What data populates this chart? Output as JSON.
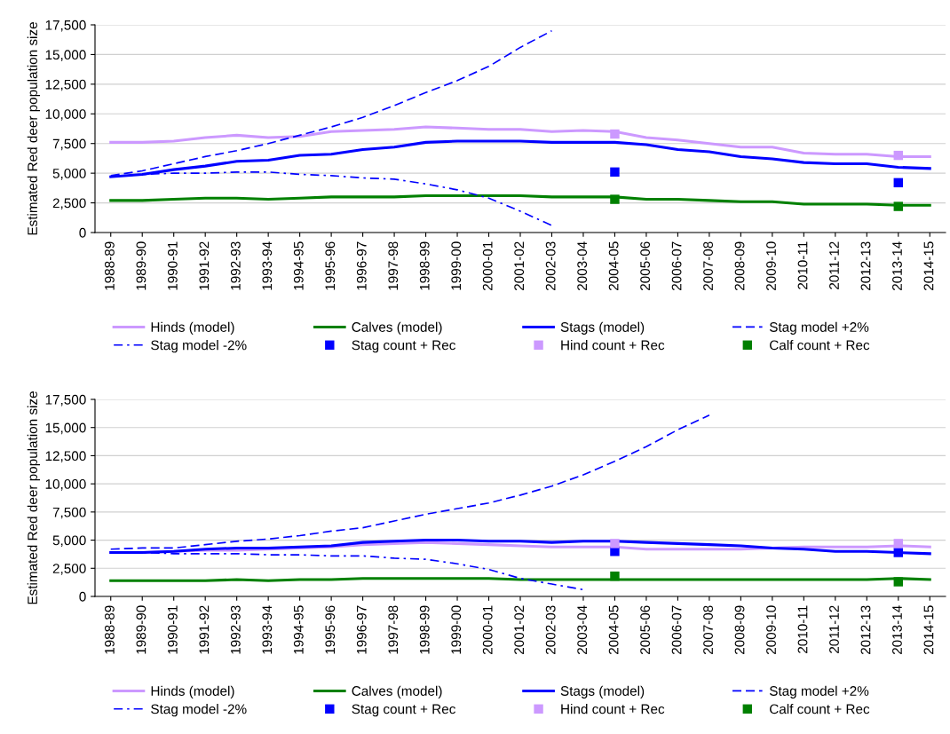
{
  "chart_data": [
    {
      "type": "line",
      "ylabel": "Estimated Red deer population size",
      "categories": [
        "1988-89",
        "1989-90",
        "1990-91",
        "1991-92",
        "1992-93",
        "1993-94",
        "1994-95",
        "1995-96",
        "1996-97",
        "1997-98",
        "1998-99",
        "1999-00",
        "2000-01",
        "2001-02",
        "2002-03",
        "2003-04",
        "2004-05",
        "2005-06",
        "2006-07",
        "2007-08",
        "2008-09",
        "2009-10",
        "2010-11",
        "2011-12",
        "2012-13",
        "2013-14",
        "2014-15"
      ],
      "ylim": [
        0,
        17500
      ],
      "yticks": [
        0,
        {
          "value": 2500,
          "label": "2,500"
        },
        {
          "value": 5000,
          "label": "5,000"
        },
        {
          "value": 7500,
          "label": "7,500"
        },
        {
          "value": 10000,
          "label": "10,000"
        },
        {
          "value": 12500,
          "label": "12,500"
        },
        {
          "value": 15000,
          "label": "15,000"
        },
        {
          "value": 17500,
          "label": "17,500"
        }
      ],
      "grid": "y",
      "legend": "bottom",
      "series": [
        {
          "name": "Hinds (model)",
          "color": "#cc99ff",
          "line_style": "solid",
          "values": [
            7600,
            7600,
            7700,
            8000,
            8200,
            8000,
            8100,
            8500,
            8600,
            8700,
            8900,
            8800,
            8700,
            8700,
            8500,
            8600,
            8500,
            8000,
            7800,
            7500,
            7200,
            7200,
            6700,
            6600,
            6600,
            6400,
            6400
          ]
        },
        {
          "name": "Calves (model)",
          "color": "#008000",
          "line_style": "solid",
          "values": [
            2700,
            2700,
            2800,
            2900,
            2900,
            2800,
            2900,
            3000,
            3000,
            3000,
            3100,
            3100,
            3100,
            3100,
            3000,
            3000,
            3000,
            2800,
            2800,
            2700,
            2600,
            2600,
            2400,
            2400,
            2400,
            2300,
            2300
          ]
        },
        {
          "name": "Stags (model)",
          "color": "#0000ff",
          "line_style": "solid",
          "values": [
            4700,
            4900,
            5300,
            5600,
            6000,
            6100,
            6500,
            6600,
            7000,
            7200,
            7600,
            7700,
            7700,
            7700,
            7600,
            7600,
            7600,
            7400,
            7000,
            6800,
            6400,
            6200,
            5900,
            5800,
            5800,
            5500,
            5400
          ]
        },
        {
          "name": "Stag model +2%",
          "color": "#0000ff",
          "line_style": "dashed",
          "values": [
            4800,
            5200,
            5800,
            6400,
            6900,
            7500,
            8200,
            8900,
            9700,
            10700,
            11800,
            12800,
            14000,
            15600,
            17000,
            null,
            null,
            null,
            null,
            null,
            null,
            null,
            null,
            null,
            null,
            null,
            null
          ]
        },
        {
          "name": "Stag model -2%",
          "color": "#0000ff",
          "line_style": "dashdot",
          "values": [
            4700,
            4900,
            5000,
            5000,
            5100,
            5100,
            4900,
            4800,
            4600,
            4500,
            4100,
            3600,
            2900,
            1800,
            600,
            null,
            null,
            null,
            null,
            null,
            null,
            null,
            null,
            null,
            null,
            null,
            null
          ]
        },
        {
          "name": "Stag count + Rec",
          "type": "scatter",
          "marker": "square",
          "color": "#0000ff",
          "values": [
            null,
            null,
            null,
            null,
            null,
            null,
            null,
            null,
            null,
            null,
            null,
            null,
            null,
            null,
            null,
            null,
            5100,
            null,
            null,
            null,
            null,
            null,
            null,
            null,
            null,
            4200,
            null
          ]
        },
        {
          "name": "Hind count + Rec",
          "type": "scatter",
          "marker": "square",
          "color": "#cc99ff",
          "values": [
            null,
            null,
            null,
            null,
            null,
            null,
            null,
            null,
            null,
            null,
            null,
            null,
            null,
            null,
            null,
            null,
            8300,
            null,
            null,
            null,
            null,
            null,
            null,
            null,
            null,
            6500,
            null
          ]
        },
        {
          "name": "Calf count + Rec",
          "type": "scatter",
          "marker": "square",
          "color": "#008000",
          "values": [
            null,
            null,
            null,
            null,
            null,
            null,
            null,
            null,
            null,
            null,
            null,
            null,
            null,
            null,
            null,
            null,
            2800,
            null,
            null,
            null,
            null,
            null,
            null,
            null,
            null,
            2200,
            null
          ]
        }
      ]
    },
    {
      "type": "line",
      "ylabel": "Estimated Red deer population size",
      "categories": [
        "1988-89",
        "1989-90",
        "1990-91",
        "1991-92",
        "1992-93",
        "1993-94",
        "1994-95",
        "1995-96",
        "1996-97",
        "1997-98",
        "1998-99",
        "1999-00",
        "2000-01",
        "2001-02",
        "2002-03",
        "2003-04",
        "2004-05",
        "2005-06",
        "2006-07",
        "2007-08",
        "2008-09",
        "2009-10",
        "2010-11",
        "2011-12",
        "2012-13",
        "2013-14",
        "2014-15"
      ],
      "ylim": [
        0,
        17500
      ],
      "yticks": [
        0,
        {
          "value": 2500,
          "label": "2,500"
        },
        {
          "value": 5000,
          "label": "5,000"
        },
        {
          "value": 7500,
          "label": "7,500"
        },
        {
          "value": 10000,
          "label": "10,000"
        },
        {
          "value": 12500,
          "label": "12,500"
        },
        {
          "value": 15000,
          "label": "15,000"
        },
        {
          "value": 17500,
          "label": "17,500"
        }
      ],
      "grid": "y",
      "legend": "bottom",
      "series": [
        {
          "name": "Hinds (model)",
          "color": "#cc99ff",
          "line_style": "solid",
          "values": [
            3900,
            3900,
            4000,
            4100,
            4100,
            4200,
            4300,
            4400,
            4600,
            4700,
            4800,
            4700,
            4600,
            4500,
            4400,
            4400,
            4400,
            4200,
            4200,
            4200,
            4200,
            4300,
            4400,
            4400,
            4400,
            4500,
            4400
          ]
        },
        {
          "name": "Calves (model)",
          "color": "#008000",
          "line_style": "solid",
          "values": [
            1400,
            1400,
            1400,
            1400,
            1500,
            1400,
            1500,
            1500,
            1600,
            1600,
            1600,
            1600,
            1600,
            1500,
            1500,
            1500,
            1500,
            1500,
            1500,
            1500,
            1500,
            1500,
            1500,
            1500,
            1500,
            1600,
            1500
          ]
        },
        {
          "name": "Stags (model)",
          "color": "#0000ff",
          "line_style": "solid",
          "values": [
            3900,
            3900,
            4000,
            4200,
            4300,
            4300,
            4400,
            4500,
            4800,
            4900,
            5000,
            5000,
            4900,
            4900,
            4800,
            4900,
            4900,
            4800,
            4700,
            4600,
            4500,
            4300,
            4200,
            4000,
            4000,
            3900,
            3800
          ]
        },
        {
          "name": "Stag model +2%",
          "color": "#0000ff",
          "line_style": "dashed",
          "values": [
            4200,
            4300,
            4300,
            4600,
            4900,
            5100,
            5400,
            5800,
            6100,
            6700,
            7300,
            7800,
            8300,
            9000,
            9800,
            10800,
            12000,
            13300,
            14800,
            16100,
            null,
            null,
            null,
            null,
            null,
            null,
            null
          ]
        },
        {
          "name": "Stag model -2%",
          "color": "#0000ff",
          "line_style": "dashdot",
          "values": [
            3900,
            3900,
            3800,
            3800,
            3800,
            3700,
            3700,
            3600,
            3600,
            3400,
            3300,
            2900,
            2400,
            1600,
            1100,
            600,
            null,
            null,
            null,
            null,
            null,
            null,
            null,
            null,
            null,
            null,
            null
          ]
        },
        {
          "name": "Stag count + Rec",
          "type": "scatter",
          "marker": "square",
          "color": "#0000ff",
          "values": [
            null,
            null,
            null,
            null,
            null,
            null,
            null,
            null,
            null,
            null,
            null,
            null,
            null,
            null,
            null,
            null,
            4000,
            null,
            null,
            null,
            null,
            null,
            null,
            null,
            null,
            3900,
            null
          ]
        },
        {
          "name": "Hind count + Rec",
          "type": "scatter",
          "marker": "square",
          "color": "#cc99ff",
          "values": [
            null,
            null,
            null,
            null,
            null,
            null,
            null,
            null,
            null,
            null,
            null,
            null,
            null,
            null,
            null,
            null,
            4700,
            null,
            null,
            null,
            null,
            null,
            null,
            null,
            null,
            4700,
            null
          ]
        },
        {
          "name": "Calf count + Rec",
          "type": "scatter",
          "marker": "square",
          "color": "#008000",
          "values": [
            null,
            null,
            null,
            null,
            null,
            null,
            null,
            null,
            null,
            null,
            null,
            null,
            null,
            null,
            null,
            null,
            1800,
            null,
            null,
            null,
            null,
            null,
            null,
            null,
            null,
            1300,
            null
          ]
        }
      ]
    }
  ]
}
